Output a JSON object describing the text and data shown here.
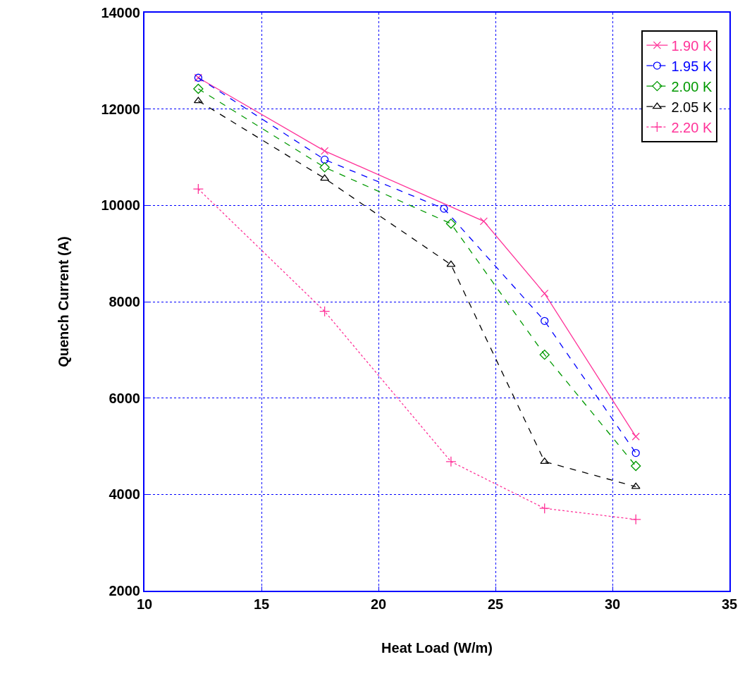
{
  "chart_data": {
    "type": "line",
    "xlabel": "Heat Load (W/m)",
    "ylabel": "Quench Current (A)",
    "xlim": [
      10,
      35
    ],
    "xticks": [
      10,
      15,
      20,
      25,
      30,
      35
    ],
    "ylim": [
      2000,
      14000
    ],
    "yticks": [
      2000,
      4000,
      6000,
      8000,
      10000,
      12000,
      14000
    ],
    "grid": true,
    "legend": "top right",
    "series": [
      {
        "name": "1.90 K",
        "color": "#ff3399",
        "marker": "cross",
        "line_style": "solid",
        "x": [
          12.3,
          17.7,
          24.5,
          27.1,
          31.0
        ],
        "values": [
          12650,
          11130,
          9670,
          8170,
          5200
        ]
      },
      {
        "name": "1.95 K",
        "color": "#0000ff",
        "marker": "circle",
        "line_style": "dashed",
        "x": [
          12.3,
          17.7,
          22.8,
          27.1,
          31.0
        ],
        "values": [
          12650,
          10950,
          9930,
          7600,
          4860
        ]
      },
      {
        "name": "2.00 K",
        "color": "#009900",
        "marker": "diamond",
        "line_style": "dashed",
        "x": [
          12.3,
          17.7,
          23.1,
          27.1,
          31.0
        ],
        "values": [
          12420,
          10790,
          9620,
          6900,
          4590
        ]
      },
      {
        "name": "2.05 K",
        "color": "#000000",
        "marker": "triangle",
        "line_style": "dashed",
        "x": [
          12.3,
          17.7,
          23.1,
          27.1,
          31.0
        ],
        "values": [
          12170,
          10560,
          8770,
          4680,
          4160
        ]
      },
      {
        "name": "2.20 K",
        "color": "#ff3399",
        "marker": "plus",
        "line_style": "dotted",
        "x": [
          12.3,
          17.7,
          23.1,
          27.1,
          31.0
        ],
        "values": [
          10340,
          7800,
          4680,
          3710,
          3480
        ]
      }
    ]
  }
}
